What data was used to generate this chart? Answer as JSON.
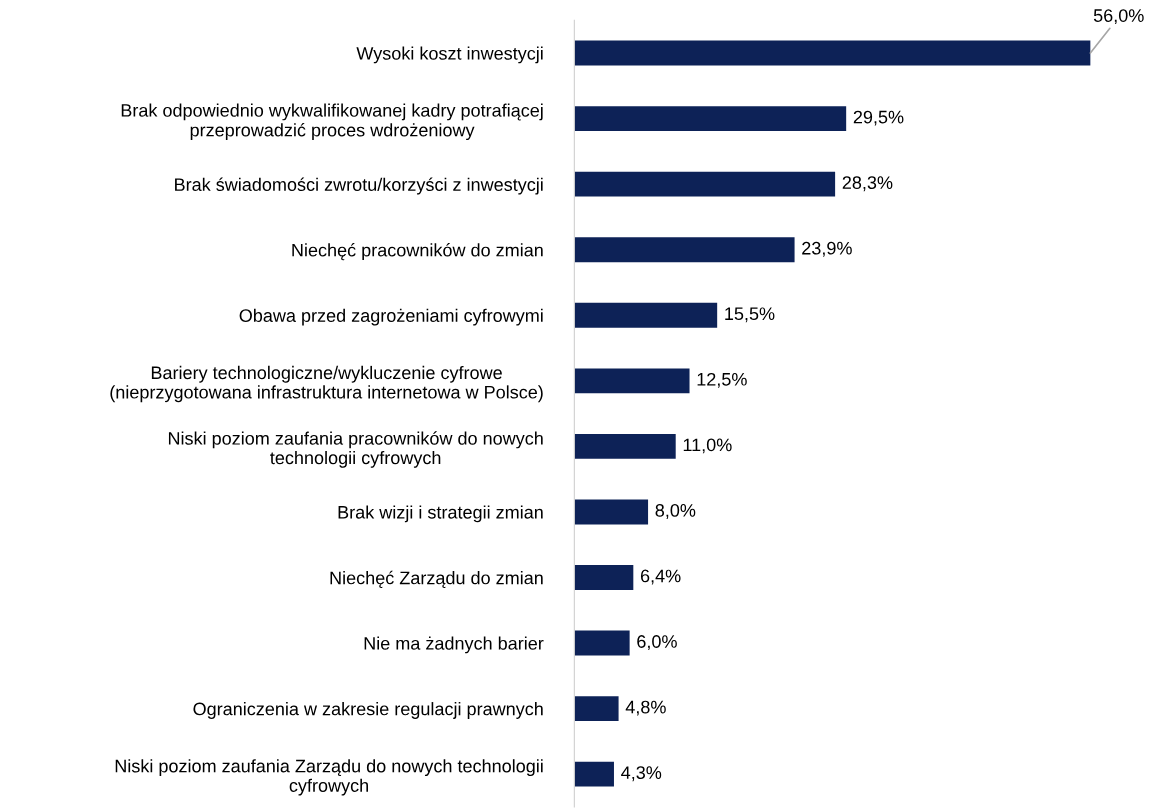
{
  "chart_data": {
    "type": "bar",
    "orientation": "horizontal",
    "categories": [
      "Wysoki koszt inwestycji",
      "Brak odpowiednio wykwalifikowanej kadry potrafiącej\nprzeprowadzić proces wdrożeniowy",
      "Brak świadomości zwrotu/korzyści z inwestycji",
      "Niechęć pracowników do zmian",
      "Obawa przed zagrożeniami cyfrowymi",
      "Bariery technologiczne/wykluczenie cyfrowe\n(nieprzygotowana infrastruktura internetowa w Polsce)",
      "Niski poziom zaufania pracowników do nowych\ntechnologii cyfrowych",
      "Brak wizji i strategii zmian",
      "Niechęć Zarządu do zmian",
      "Nie ma żadnych barier",
      "Ograniczenia w zakresie regulacji prawnych",
      "Niski poziom zaufania Zarządu do nowych technologii\ncyfrowych"
    ],
    "values": [
      56.0,
      29.5,
      28.3,
      23.9,
      15.5,
      12.5,
      11.0,
      8.0,
      6.4,
      6.0,
      4.8,
      4.3
    ],
    "value_labels": [
      "56,0%",
      "29,5%",
      "28,3%",
      "23,9%",
      "15,5%",
      "12,5%",
      "11,0%",
      "8,0%",
      "6,4%",
      "6,0%",
      "4,8%",
      "4,3%"
    ],
    "color": "#0d2257",
    "grid": false,
    "legend": false,
    "tick_labels": "y"
  }
}
